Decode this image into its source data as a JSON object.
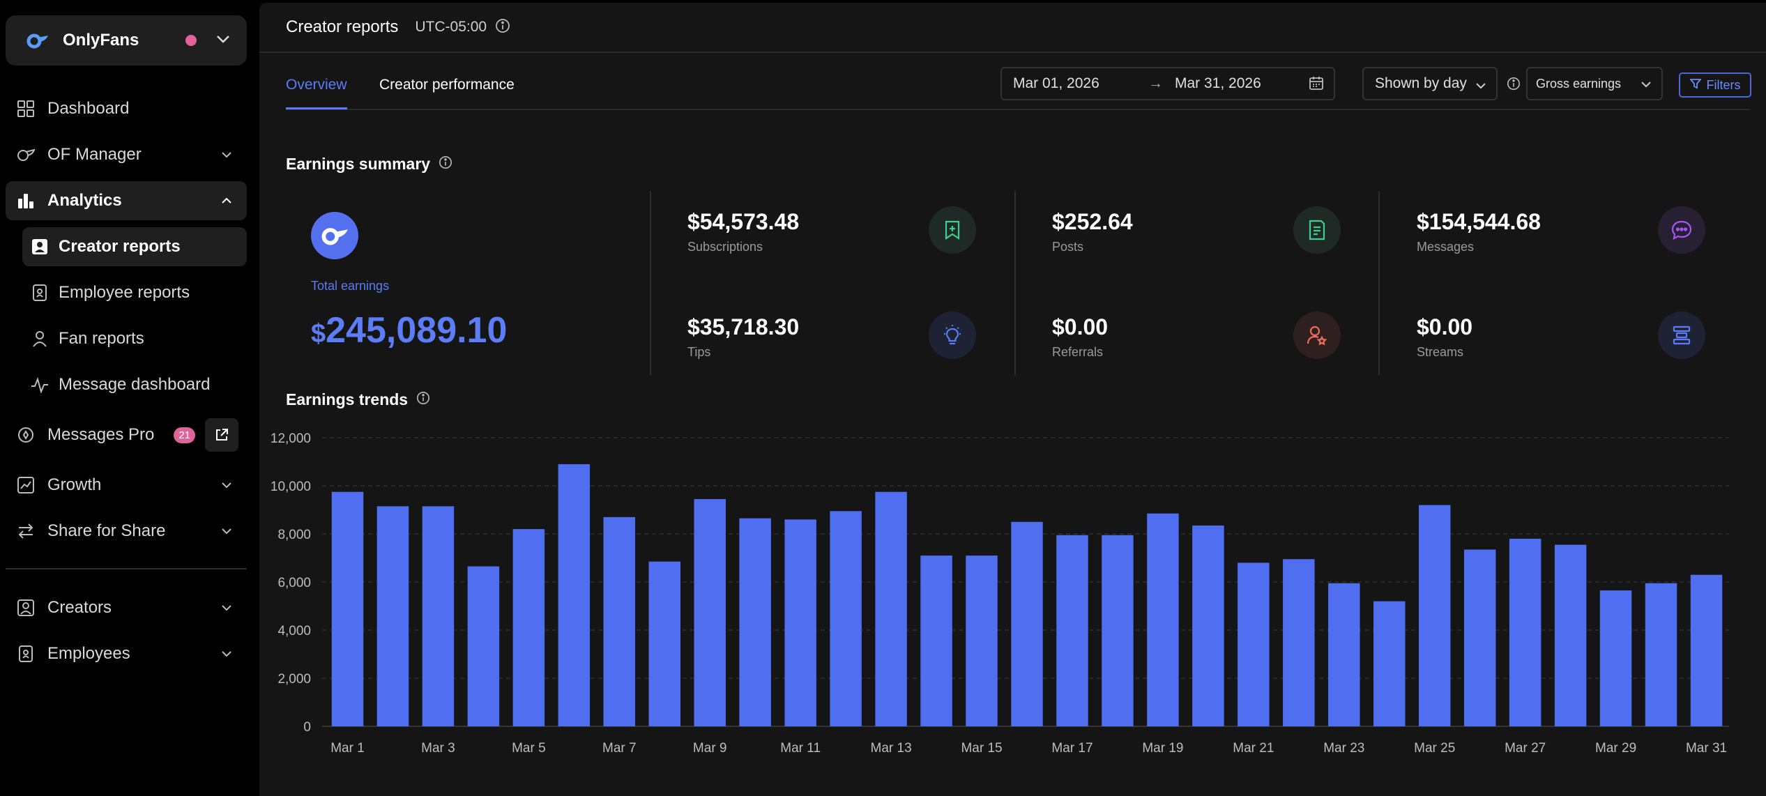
{
  "sidebar": {
    "account_name": "OnlyFans",
    "items": [
      {
        "label": "Dashboard"
      },
      {
        "label": "OF Manager"
      },
      {
        "label": "Analytics"
      },
      {
        "label": "Creator reports"
      },
      {
        "label": "Employee reports"
      },
      {
        "label": "Fan reports"
      },
      {
        "label": "Message dashboard"
      },
      {
        "label": "Messages Pro",
        "badge": "21"
      },
      {
        "label": "Growth"
      },
      {
        "label": "Share for Share"
      },
      {
        "label": "Creators"
      },
      {
        "label": "Employees"
      }
    ]
  },
  "header": {
    "title": "Creator reports",
    "timezone": "UTC-05:00"
  },
  "tabs": [
    {
      "label": "Overview"
    },
    {
      "label": "Creator performance"
    }
  ],
  "controls": {
    "date_start": "Mar 01, 2026",
    "date_end": "Mar 31, 2026",
    "granularity": "Shown by day",
    "metric": "Gross earnings",
    "filters_label": "Filters"
  },
  "summary": {
    "title": "Earnings summary",
    "total_label": "Total earnings",
    "total_currency": "$",
    "total_value": "245,089.10",
    "metrics": [
      {
        "value": "$54,573.48",
        "label": "Subscriptions",
        "icon": "plus-square-icon",
        "color": "#3ecf8e"
      },
      {
        "value": "$252.64",
        "label": "Posts",
        "icon": "document-icon",
        "color": "#3ecf8e"
      },
      {
        "value": "$154,544.68",
        "label": "Messages",
        "icon": "chat-bubble-icon",
        "color": "#a855f7"
      },
      {
        "value": "$35,718.30",
        "label": "Tips",
        "icon": "lightbulb-icon",
        "color": "#5b7cf6"
      },
      {
        "value": "$0.00",
        "label": "Referrals",
        "icon": "user-star-icon",
        "color": "#ef6b5b"
      },
      {
        "value": "$0.00",
        "label": "Streams",
        "icon": "stream-icon",
        "color": "#5b7cf6"
      }
    ]
  },
  "trends_title": "Earnings trends",
  "chart_data": {
    "type": "bar",
    "categories": [
      "Mar 1",
      "Mar 2",
      "Mar 3",
      "Mar 4",
      "Mar 5",
      "Mar 6",
      "Mar 7",
      "Mar 8",
      "Mar 9",
      "Mar 10",
      "Mar 11",
      "Mar 12",
      "Mar 13",
      "Mar 14",
      "Mar 15",
      "Mar 16",
      "Mar 17",
      "Mar 18",
      "Mar 19",
      "Mar 20",
      "Mar 21",
      "Mar 22",
      "Mar 23",
      "Mar 24",
      "Mar 25",
      "Mar 26",
      "Mar 27",
      "Mar 28",
      "Mar 29",
      "Mar 30",
      "Mar 31"
    ],
    "tick_labels": [
      "Mar 1",
      "Mar 3",
      "Mar 5",
      "Mar 7",
      "Mar 9",
      "Mar 11",
      "Mar 13",
      "Mar 15",
      "Mar 17",
      "Mar 19",
      "Mar 21",
      "Mar 23",
      "Mar 25",
      "Mar 27",
      "Mar 29",
      "Mar 31"
    ],
    "values": [
      9750,
      9150,
      9150,
      6650,
      8200,
      10900,
      8700,
      6850,
      9450,
      8650,
      8600,
      8950,
      9750,
      7100,
      7100,
      8500,
      7950,
      7950,
      8850,
      8350,
      6800,
      6950,
      5950,
      5200,
      9200,
      7350,
      7800,
      7550,
      5650,
      5950,
      6300
    ],
    "ylim": [
      0,
      12000
    ],
    "yticks": [
      "0",
      "2,000",
      "4,000",
      "6,000",
      "8,000",
      "10,000",
      "12,000"
    ],
    "grid": true,
    "bar_color": "#4f6ef0"
  }
}
